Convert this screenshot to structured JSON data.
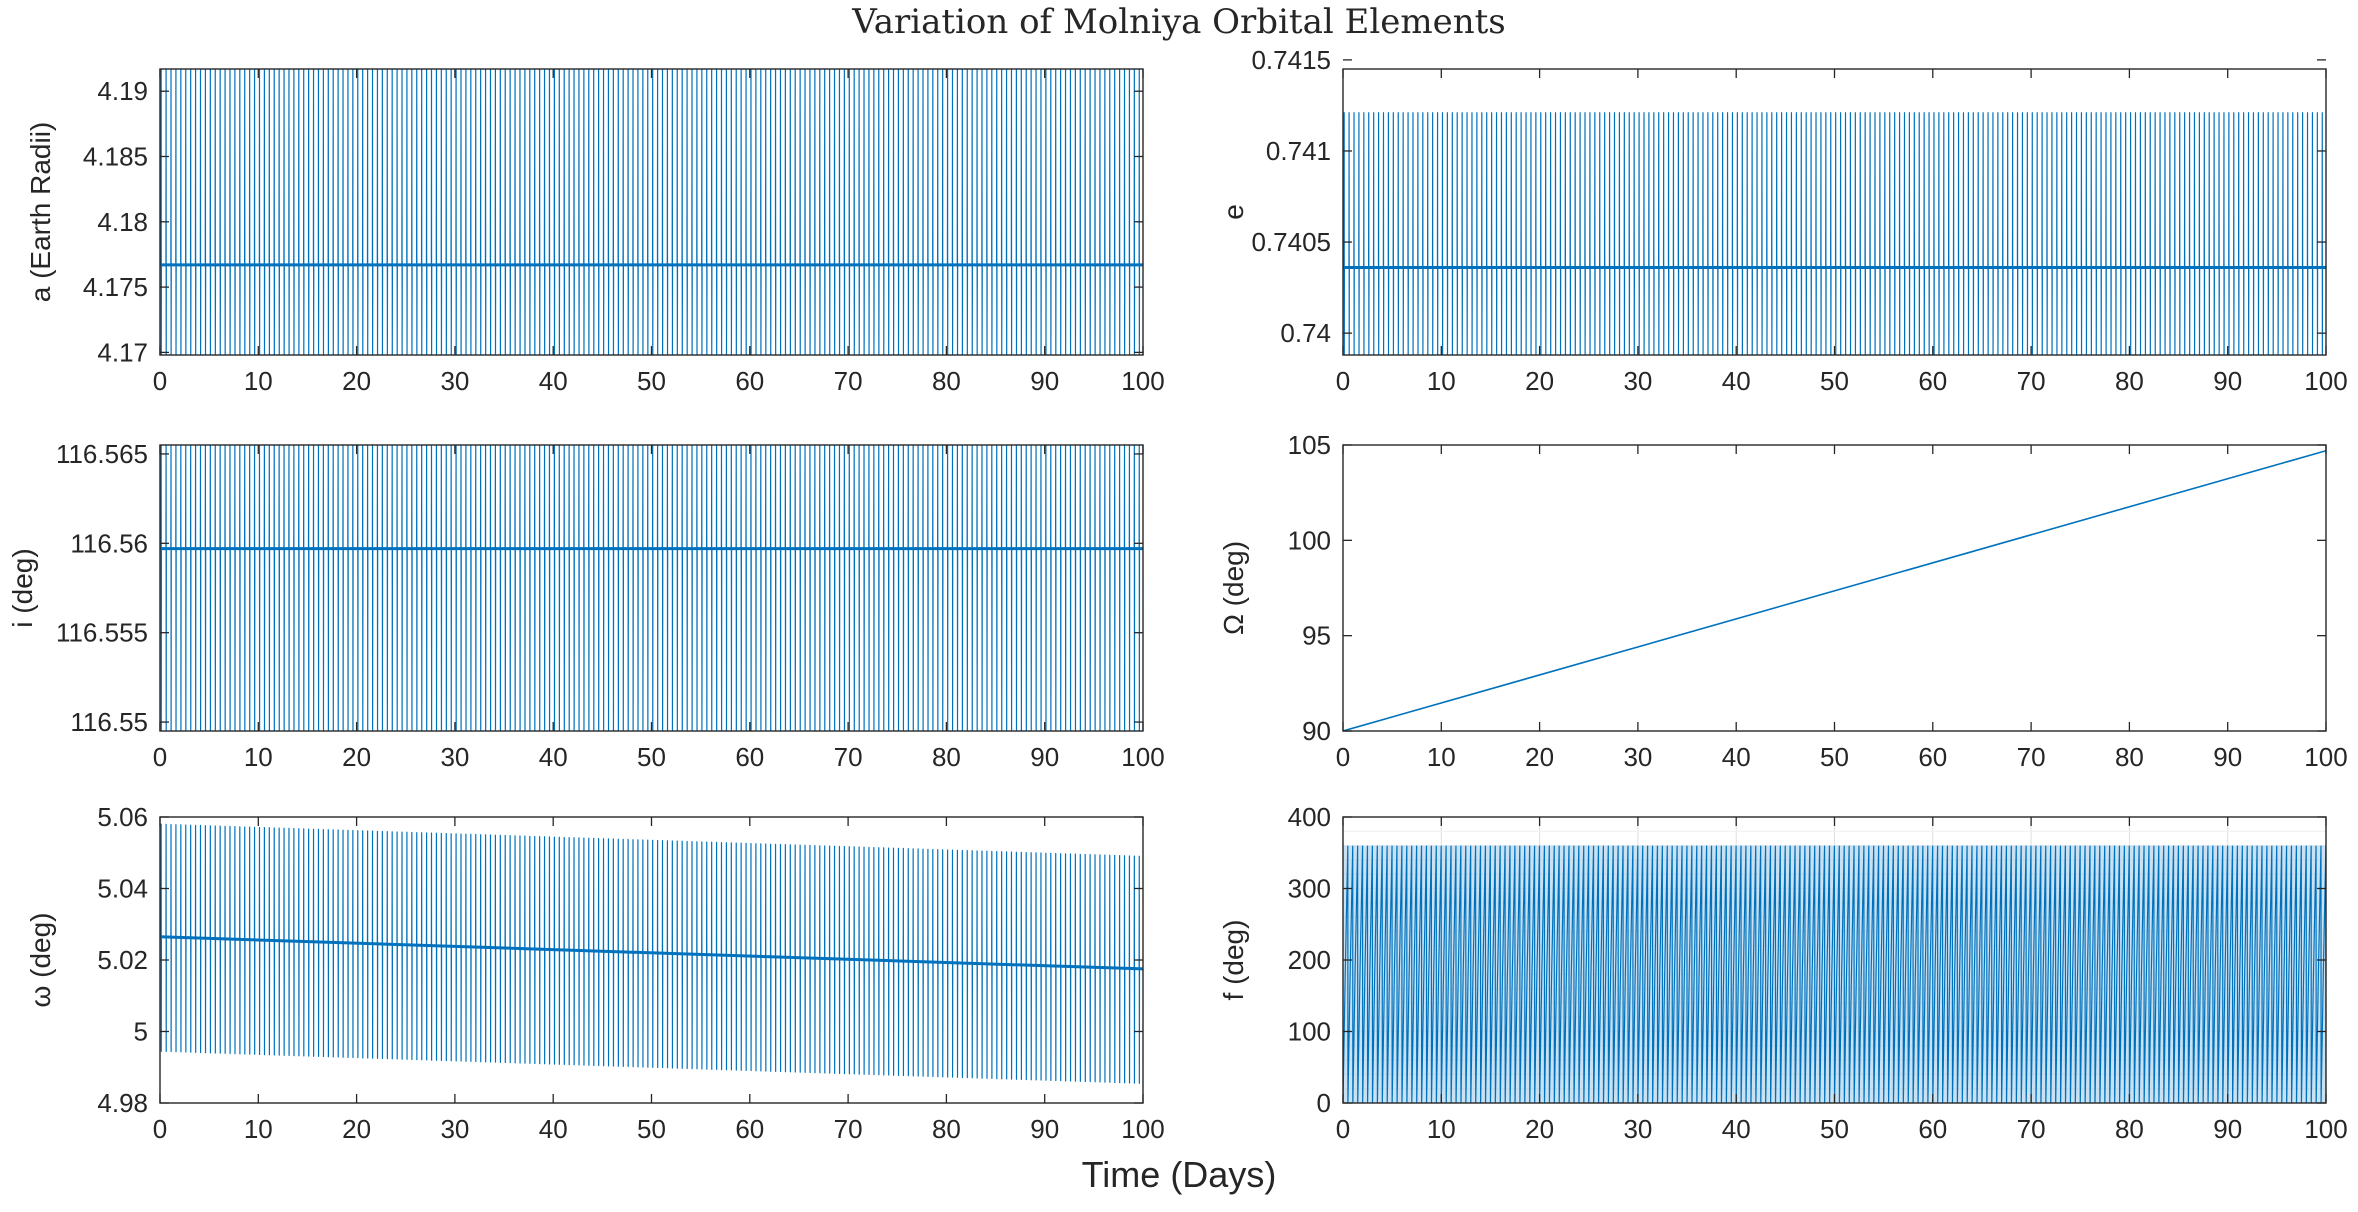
{
  "figure": {
    "title": "Variation of Molniya Orbital Elements",
    "xlabel": "Time (Days)",
    "line_color": "#0072BD",
    "axis_color": "#262626"
  },
  "chart_data": [
    {
      "type": "line",
      "ylabel": "a (Earth Radii)",
      "xlim": [
        0,
        100
      ],
      "ylim": [
        4.1698,
        4.1917
      ],
      "x_ticks": [
        "0",
        "10",
        "20",
        "30",
        "40",
        "50",
        "60",
        "70",
        "80",
        "90",
        "100"
      ],
      "y_ticks": [
        4.17,
        4.175,
        4.18,
        4.185,
        4.19
      ],
      "y_tick_labels": [
        "4.17",
        "4.175",
        "4.18",
        "4.185",
        "4.19"
      ],
      "grid": false,
      "series": [
        {
          "kind": "oscillation",
          "periods": 200,
          "min": [
            4.1698,
            4.1698
          ],
          "max": [
            4.1917,
            4.1917
          ],
          "dwell": 4.1767
        }
      ]
    },
    {
      "type": "line",
      "ylabel": "e",
      "xlim": [
        0,
        100
      ],
      "ylim": [
        0.73988,
        0.74145
      ],
      "x_ticks": [
        "0",
        "10",
        "20",
        "30",
        "40",
        "50",
        "60",
        "70",
        "80",
        "90",
        "100"
      ],
      "y_ticks": [
        0.74,
        0.7405,
        0.741,
        0.7415
      ],
      "y_tick_labels": [
        "0.74",
        "0.7405",
        "0.741",
        "0.7415"
      ],
      "grid": false,
      "series": [
        {
          "kind": "oscillation",
          "periods": 200,
          "min": [
            0.73988,
            0.73988
          ],
          "max": [
            0.74121,
            0.74121
          ],
          "dwell": 0.74036
        }
      ]
    },
    {
      "type": "line",
      "ylabel": "i (deg)",
      "xlim": [
        0,
        100
      ],
      "ylim": [
        116.5495,
        116.5655
      ],
      "x_ticks": [
        "0",
        "10",
        "20",
        "30",
        "40",
        "50",
        "60",
        "70",
        "80",
        "90",
        "100"
      ],
      "y_ticks": [
        116.55,
        116.555,
        116.56,
        116.565
      ],
      "y_tick_labels": [
        "116.55",
        "116.555",
        "116.56",
        "116.565"
      ],
      "grid": false,
      "series": [
        {
          "kind": "oscillation",
          "periods": 200,
          "min": [
            116.5495,
            116.5495
          ],
          "max": [
            116.5655,
            116.5655
          ],
          "dwell": 116.5597
        }
      ]
    },
    {
      "type": "line",
      "ylabel": "Ω (deg)",
      "xlim": [
        0,
        100
      ],
      "ylim": [
        90,
        105
      ],
      "x_ticks": [
        "0",
        "10",
        "20",
        "30",
        "40",
        "50",
        "60",
        "70",
        "80",
        "90",
        "100"
      ],
      "y_ticks": [
        90,
        95,
        100,
        105
      ],
      "y_tick_labels": [
        "90",
        "95",
        "100",
        "105"
      ],
      "grid": false,
      "series": [
        {
          "kind": "line",
          "x": [
            0,
            100
          ],
          "y": [
            90,
            104.7
          ]
        }
      ]
    },
    {
      "type": "line",
      "ylabel": "ω (deg)",
      "xlim": [
        0,
        100
      ],
      "ylim": [
        4.98,
        5.06
      ],
      "x_ticks": [
        "0",
        "10",
        "20",
        "30",
        "40",
        "50",
        "60",
        "70",
        "80",
        "90",
        "100"
      ],
      "y_ticks": [
        4.98,
        5,
        5.02,
        5.04,
        5.06
      ],
      "y_tick_labels": [
        "4.98",
        "5",
        "5.02",
        "5.04",
        "5.06"
      ],
      "grid": false,
      "series": [
        {
          "kind": "oscillation",
          "periods": 200,
          "min": [
            4.9945,
            4.9855
          ],
          "max": [
            5.058,
            5.049
          ],
          "dwell_start": 5.0265,
          "dwell_end": 5.0175
        }
      ]
    },
    {
      "type": "line",
      "ylabel": "f (deg)",
      "xlim": [
        0,
        100
      ],
      "ylim": [
        0,
        400
      ],
      "x_ticks": [
        "0",
        "10",
        "20",
        "30",
        "40",
        "50",
        "60",
        "70",
        "80",
        "90",
        "100"
      ],
      "y_ticks": [
        0,
        100,
        200,
        300,
        400
      ],
      "y_tick_labels": [
        "0",
        "100",
        "200",
        "300",
        "400"
      ],
      "grid": true,
      "series": [
        {
          "kind": "sawtooth",
          "periods": 200,
          "min": [
            0,
            0
          ],
          "max": [
            360,
            360
          ],
          "dwell": 180
        }
      ]
    }
  ]
}
